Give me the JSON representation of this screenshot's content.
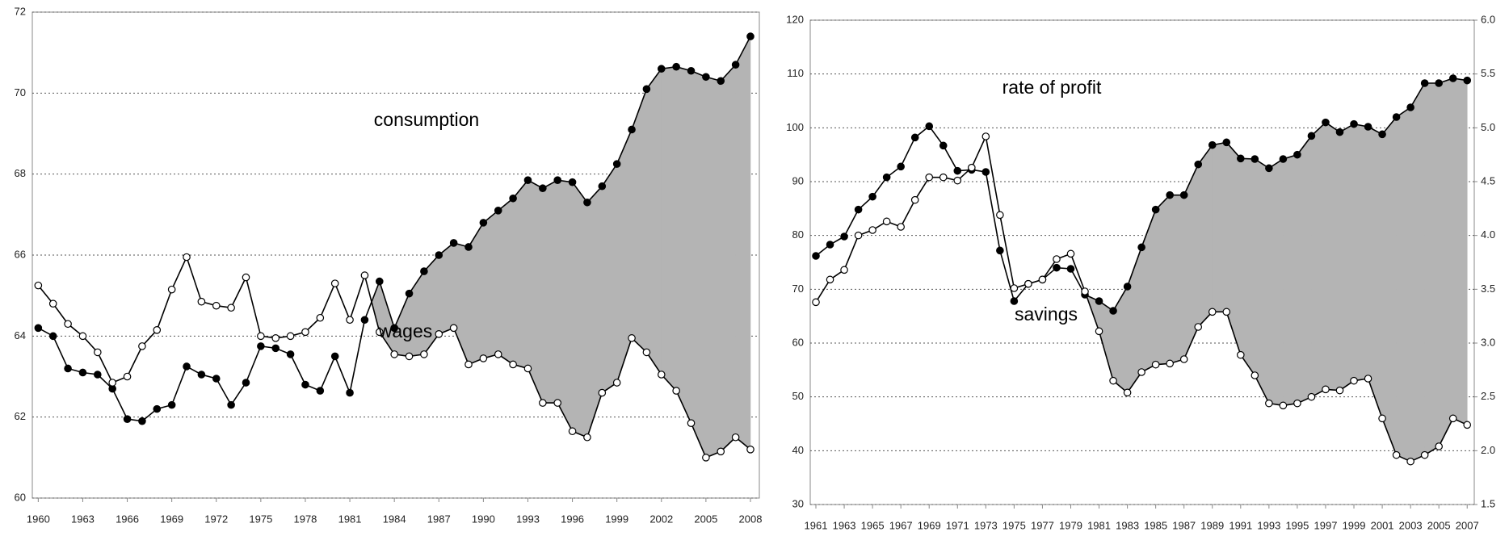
{
  "chart_data": [
    {
      "type": "line",
      "x": [
        1960,
        1961,
        1962,
        1963,
        1964,
        1965,
        1966,
        1967,
        1968,
        1969,
        1970,
        1971,
        1972,
        1973,
        1974,
        1975,
        1976,
        1977,
        1978,
        1979,
        1980,
        1981,
        1982,
        1983,
        1984,
        1985,
        1986,
        1987,
        1988,
        1989,
        1990,
        1991,
        1992,
        1993,
        1994,
        1995,
        1996,
        1997,
        1998,
        1999,
        2000,
        2001,
        2002,
        2003,
        2004,
        2005,
        2006,
        2007,
        2008
      ],
      "series": [
        {
          "name": "consumption",
          "color": "#000000",
          "marker": "filled",
          "values": [
            64.2,
            64.0,
            63.2,
            63.1,
            63.05,
            62.7,
            61.95,
            61.9,
            62.2,
            62.3,
            63.25,
            63.05,
            62.95,
            62.3,
            62.85,
            63.75,
            63.7,
            63.55,
            62.8,
            62.65,
            63.5,
            62.6,
            64.4,
            65.35,
            64.2,
            65.05,
            65.6,
            66.0,
            66.3,
            66.2,
            66.8,
            67.1,
            67.4,
            67.85,
            67.65,
            67.85,
            67.8,
            67.3,
            67.7,
            68.25,
            69.1,
            70.1,
            70.6,
            70.65,
            70.55,
            70.4,
            70.3,
            70.7,
            71.4
          ]
        },
        {
          "name": "wages",
          "color": "#000000",
          "marker": "open",
          "values": [
            65.25,
            64.8,
            64.3,
            64.0,
            63.6,
            62.85,
            63.0,
            63.75,
            64.15,
            65.15,
            65.95,
            64.85,
            64.75,
            64.7,
            65.45,
            64.0,
            63.95,
            64.0,
            64.1,
            64.45,
            65.3,
            64.4,
            65.5,
            64.1,
            63.55,
            63.5,
            63.55,
            64.05,
            64.2,
            63.3,
            63.45,
            63.55,
            63.3,
            63.2,
            62.35,
            62.35,
            61.65,
            61.5,
            62.6,
            62.85,
            63.95,
            63.6,
            63.05,
            62.65,
            61.85,
            61.0,
            61.15,
            61.5,
            61.2
          ]
        }
      ],
      "annotations": [
        "consumption",
        "wages"
      ],
      "xlim": [
        1959.6,
        2008.6
      ],
      "xticks": [
        1960,
        1963,
        1966,
        1969,
        1972,
        1975,
        1978,
        1981,
        1984,
        1987,
        1990,
        1993,
        1996,
        1999,
        2002,
        2005,
        2008
      ],
      "ylim": [
        60,
        72
      ],
      "yticks": [
        60,
        62,
        64,
        66,
        68,
        70,
        72
      ],
      "grid": true,
      "fill_color": "#b4b4b4",
      "shade_from": 1982
    },
    {
      "type": "line",
      "x": [
        1961,
        1962,
        1963,
        1964,
        1965,
        1966,
        1967,
        1968,
        1969,
        1970,
        1971,
        1972,
        1973,
        1974,
        1975,
        1976,
        1977,
        1978,
        1979,
        1980,
        1981,
        1982,
        1983,
        1984,
        1985,
        1986,
        1987,
        1988,
        1989,
        1990,
        1991,
        1992,
        1993,
        1994,
        1995,
        1996,
        1997,
        1998,
        1999,
        2000,
        2001,
        2002,
        2003,
        2004,
        2005,
        2006,
        2007
      ],
      "series": [
        {
          "name": "rate of profit",
          "color": "#000000",
          "marker": "filled",
          "values": [
            76.2,
            78.3,
            79.8,
            84.8,
            87.2,
            90.8,
            92.8,
            98.2,
            100.3,
            96.7,
            92.0,
            92.2,
            91.8,
            77.2,
            67.8,
            71.0,
            71.8,
            74.0,
            73.8,
            69.0,
            67.8,
            66.0,
            70.5,
            77.8,
            84.8,
            87.5,
            87.5,
            93.2,
            96.8,
            97.3,
            94.3,
            94.2,
            92.5,
            94.2,
            95.0,
            98.5,
            101.0,
            99.2,
            100.7,
            100.2,
            98.8,
            102.0,
            103.8,
            108.3,
            108.3,
            109.2,
            108.8
          ]
        },
        {
          "name": "savings",
          "color": "#000000",
          "marker": "open",
          "axis": "y2",
          "values": [
            3.38,
            3.59,
            3.68,
            4.0,
            4.05,
            4.13,
            4.08,
            4.33,
            4.54,
            4.54,
            4.51,
            4.63,
            4.92,
            4.19,
            3.51,
            3.55,
            3.59,
            3.78,
            3.83,
            3.48,
            3.11,
            2.65,
            2.54,
            2.73,
            2.8,
            2.81,
            2.85,
            3.15,
            3.29,
            3.29,
            2.89,
            2.7,
            2.44,
            2.42,
            2.44,
            2.5,
            2.57,
            2.56,
            2.65,
            2.67,
            2.3,
            1.96,
            1.9,
            1.96,
            2.04,
            2.3,
            2.24
          ]
        }
      ],
      "annotations": [
        "rate of profit",
        "savings"
      ],
      "xlim": [
        1960.6,
        2007.5
      ],
      "xticks": [
        1961,
        1963,
        1965,
        1967,
        1969,
        1971,
        1973,
        1975,
        1977,
        1979,
        1981,
        1983,
        1985,
        1987,
        1989,
        1991,
        1993,
        1995,
        1997,
        1999,
        2001,
        2003,
        2005,
        2007
      ],
      "ylim": [
        30,
        120
      ],
      "yticks": [
        30,
        40,
        50,
        60,
        70,
        80,
        90,
        100,
        110,
        120
      ],
      "y2lim": [
        1.5,
        6.0
      ],
      "y2ticks": [
        1.5,
        {
          "value": 2,
          "label": "2.0"
        },
        2.5,
        {
          "value": 3,
          "label": "3.0"
        },
        3.5,
        {
          "value": 4,
          "label": "4.0"
        },
        4.5,
        {
          "value": 5,
          "label": "5.0"
        },
        5.5,
        {
          "value": 6,
          "label": "6.0"
        }
      ],
      "grid": true,
      "fill_color": "#b4b4b4",
      "shade_from": 1980
    }
  ]
}
